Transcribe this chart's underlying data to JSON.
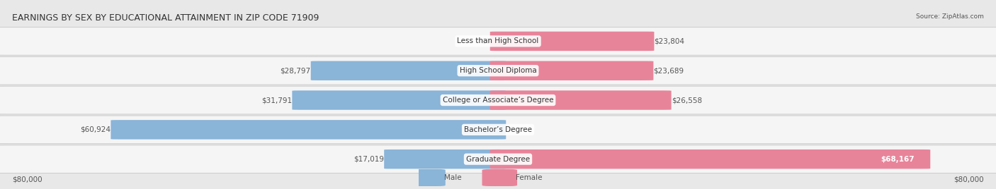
{
  "title": "EARNINGS BY SEX BY EDUCATIONAL ATTAINMENT IN ZIP CODE 71909",
  "source": "Source: ZipAtlas.com",
  "categories": [
    "Less than High School",
    "High School Diploma",
    "College or Associate’s Degree",
    "Bachelor’s Degree",
    "Graduate Degree"
  ],
  "male_values": [
    0,
    28797,
    31791,
    60924,
    17019
  ],
  "female_values": [
    23804,
    23689,
    26558,
    0,
    68167
  ],
  "male_color": "#8ab4d8",
  "female_color": "#e8849a",
  "max_val": 80000,
  "bg_color": "#e8e8e8",
  "row_bg_color": "#f5f5f5",
  "row_border_color": "#cccccc",
  "title_color": "#333333",
  "label_color": "#555555",
  "label_inside_color": "#ffffff",
  "category_color": "#333333",
  "label_fontsize": 7.5,
  "title_fontsize": 9,
  "category_fontsize": 7.5,
  "source_fontsize": 6.5,
  "axis_fontsize": 7.5
}
